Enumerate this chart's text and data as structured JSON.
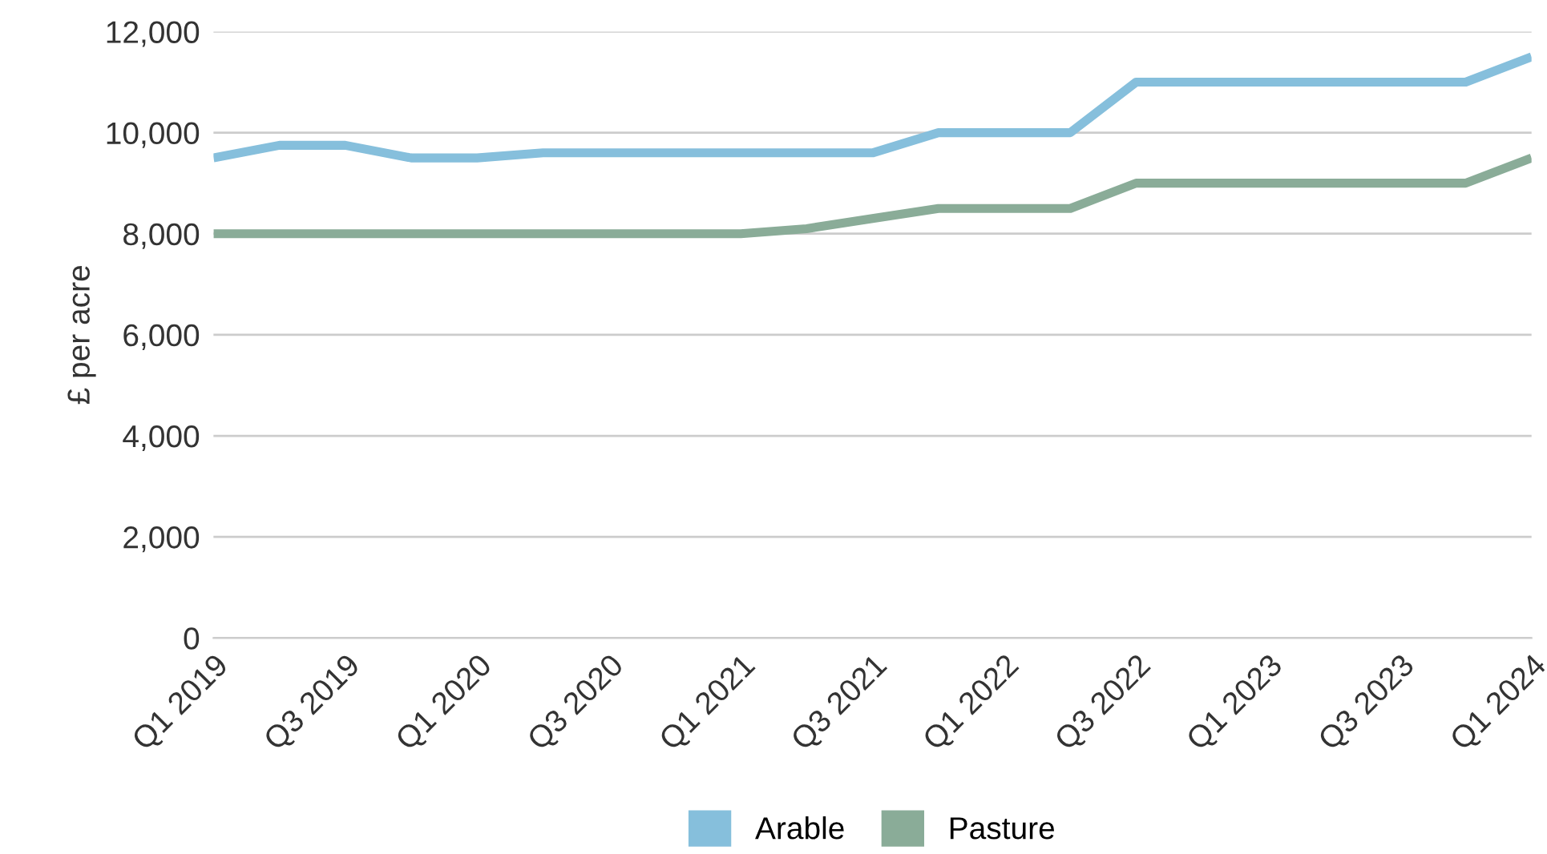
{
  "chart_data": {
    "type": "line",
    "ylabel": "£ per acre",
    "categories": [
      "Q1 2019",
      null,
      "Q3 2019",
      null,
      "Q1 2020",
      null,
      "Q3 2020",
      null,
      "Q1 2021",
      null,
      "Q3 2021",
      null,
      "Q1 2022",
      null,
      "Q3 2022",
      null,
      "Q1 2023",
      null,
      "Q3 2023",
      null,
      "Q1 2024"
    ],
    "series": [
      {
        "name": "Arable",
        "color": "#86bfdc",
        "values": [
          9500,
          9750,
          9750,
          9500,
          9500,
          9600,
          9600,
          9600,
          9600,
          9600,
          9600,
          10000,
          10000,
          10000,
          11000,
          11000,
          11000,
          11000,
          11000,
          11000,
          11500
        ]
      },
      {
        "name": "Pasture",
        "color": "#8aac98",
        "values": [
          8000,
          8000,
          8000,
          8000,
          8000,
          8000,
          8000,
          8000,
          8000,
          8100,
          8300,
          8500,
          8500,
          8500,
          9000,
          9000,
          9000,
          9000,
          9000,
          9000,
          9500
        ]
      }
    ],
    "ylim": [
      0,
      12000
    ],
    "yticks": [
      {
        "value": 0,
        "label": "0"
      },
      {
        "value": 2000,
        "label": "2,000"
      },
      {
        "value": 4000,
        "label": "4,000"
      },
      {
        "value": 6000,
        "label": "6,000"
      },
      {
        "value": 8000,
        "label": "8,000"
      },
      {
        "value": 10000,
        "label": "10,000"
      },
      {
        "value": 12000,
        "label": "12,000"
      }
    ],
    "grid": "y",
    "legend": "bottom",
    "marker": "none",
    "line_style": "solid"
  }
}
